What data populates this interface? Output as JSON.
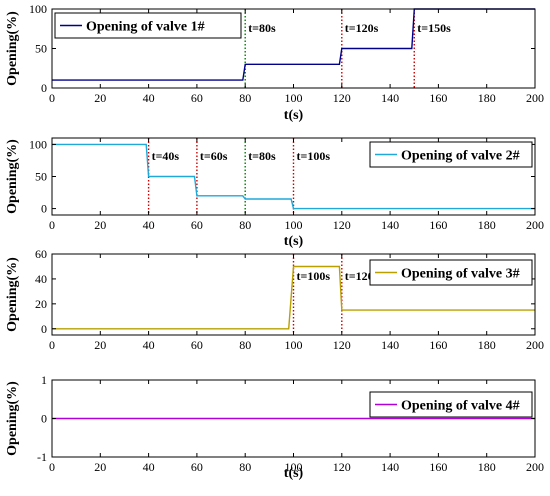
{
  "chart_data": [
    {
      "type": "line",
      "title": "",
      "xlabel": "t(s)",
      "ylabel": "Opening(%)",
      "xlim": [
        0,
        200
      ],
      "ylim": [
        0,
        100
      ],
      "xticks": [
        0,
        20,
        40,
        60,
        80,
        100,
        120,
        140,
        160,
        180,
        200
      ],
      "yticks": [
        0,
        50,
        100
      ],
      "legend_position": "top-left",
      "series": [
        {
          "name": "Opening of valve 1#",
          "color": "#00008b",
          "points": [
            [
              0,
              10
            ],
            [
              79,
              10
            ],
            [
              80,
              30
            ],
            [
              119,
              30
            ],
            [
              120,
              50
            ],
            [
              149,
              50
            ],
            [
              150,
              100
            ],
            [
              200,
              100
            ]
          ]
        }
      ],
      "annotations": [
        {
          "x": 80,
          "label": "t=80s",
          "color": "#008000"
        },
        {
          "x": 120,
          "label": "t=120s",
          "color": "#cc0000"
        },
        {
          "x": 150,
          "label": "t=150s",
          "color": "#cc0000"
        }
      ]
    },
    {
      "type": "line",
      "title": "",
      "xlabel": "t(s)",
      "ylabel": "Opening(%)",
      "xlim": [
        0,
        200
      ],
      "ylim": [
        -10,
        110
      ],
      "xticks": [
        0,
        20,
        40,
        60,
        80,
        100,
        120,
        140,
        160,
        180,
        200
      ],
      "yticks": [
        0,
        50,
        100
      ],
      "legend_position": "top-right",
      "series": [
        {
          "name": "Opening of valve 2#",
          "color": "#1fa8d8",
          "points": [
            [
              0,
              100
            ],
            [
              39,
              100
            ],
            [
              40,
              50
            ],
            [
              59,
              50
            ],
            [
              60,
              20
            ],
            [
              79,
              20
            ],
            [
              80,
              15
            ],
            [
              99,
              15
            ],
            [
              100,
              0
            ],
            [
              200,
              0
            ]
          ]
        }
      ],
      "annotations": [
        {
          "x": 40,
          "label": "t=40s",
          "color": "#cc0000"
        },
        {
          "x": 60,
          "label": "t=60s",
          "color": "#cc0000"
        },
        {
          "x": 80,
          "label": "t=80s",
          "color": "#008000"
        },
        {
          "x": 100,
          "label": "t=100s",
          "color": "#cc0000"
        }
      ]
    },
    {
      "type": "line",
      "title": "",
      "xlabel": "",
      "ylabel": "Opening(%)",
      "xlim": [
        0,
        200
      ],
      "ylim": [
        -5,
        60
      ],
      "xticks": [
        0,
        20,
        40,
        60,
        80,
        100,
        120,
        140,
        160,
        180,
        200
      ],
      "yticks": [
        0,
        20,
        40,
        60
      ],
      "legend_position": "top-right",
      "series": [
        {
          "name": "Opening of valve 3#",
          "color": "#b8a000",
          "points": [
            [
              0,
              0
            ],
            [
              98,
              0
            ],
            [
              100,
              50
            ],
            [
              119,
              50
            ],
            [
              120,
              15
            ],
            [
              200,
              15
            ]
          ]
        }
      ],
      "annotations": [
        {
          "x": 100,
          "label": "t=100s",
          "color": "#cc0000"
        },
        {
          "x": 120,
          "label": "t=120s",
          "color": "#cc0000"
        }
      ]
    },
    {
      "type": "line",
      "title": "",
      "xlabel": "t(s)",
      "ylabel": "Opening(%)",
      "xlim": [
        0,
        200
      ],
      "ylim": [
        -1,
        1
      ],
      "xticks": [
        0,
        20,
        40,
        60,
        80,
        100,
        120,
        140,
        160,
        180,
        200
      ],
      "yticks": [
        -1,
        0,
        1
      ],
      "legend_position": "top-right",
      "series": [
        {
          "name": "Opening of valve 4#",
          "color": "#b000d8",
          "points": [
            [
              0,
              0
            ],
            [
              200,
              0
            ]
          ]
        }
      ],
      "annotations": []
    }
  ]
}
